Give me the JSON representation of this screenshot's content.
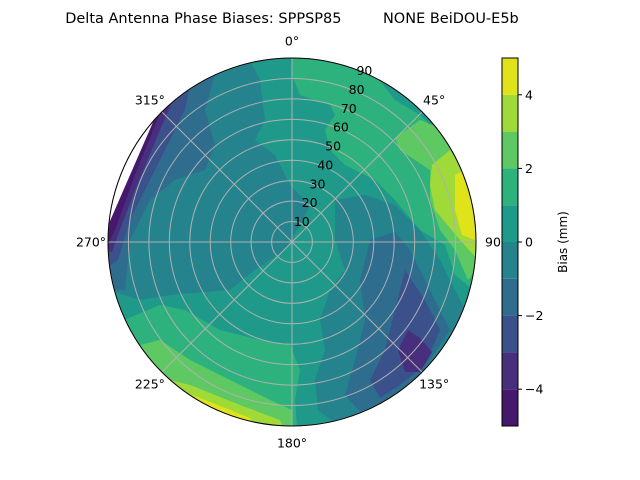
{
  "chart_data": {
    "type": "contour-polar",
    "title": "Delta Antenna Phase Biases: SPPSP85         NONE BeiDOU-E5b",
    "theta_ticks": [
      "0°",
      "45°",
      "90",
      "135°",
      "180°",
      "225°",
      "270°",
      "315°"
    ],
    "theta_direction": "clockwise",
    "theta_zero": "top",
    "r_ticks": [
      "10",
      "20",
      "30",
      "40",
      "50",
      "60",
      "70",
      "80",
      "90"
    ],
    "r_range": [
      0,
      90
    ],
    "grid": true,
    "colorbar": {
      "label": "Bias (mm)",
      "range": [
        -5,
        5
      ],
      "ticks": [
        "−4",
        "−2",
        "0",
        "2",
        "4"
      ],
      "levels": [
        -5,
        -4,
        -3,
        -2,
        -1,
        0,
        1,
        2,
        3,
        4,
        5
      ],
      "colors": [
        "#46186d",
        "#472f7d",
        "#3b518b",
        "#2e6d8e",
        "#25838e",
        "#1f9a8a",
        "#2db27d",
        "#5ec962",
        "#a0da39",
        "#e0e31a"
      ],
      "placement": "right"
    },
    "regions": [
      {
        "level": "-1..0",
        "location": "center-west and south-east"
      },
      {
        "level": "-5..-2",
        "location": "north-west edge (280°–320°), south-east (120°–150°)"
      },
      {
        "level": "1..5",
        "location": "north-east edge (45°–100°, max near 80°), south-west edge (200°–240°)"
      }
    ]
  }
}
